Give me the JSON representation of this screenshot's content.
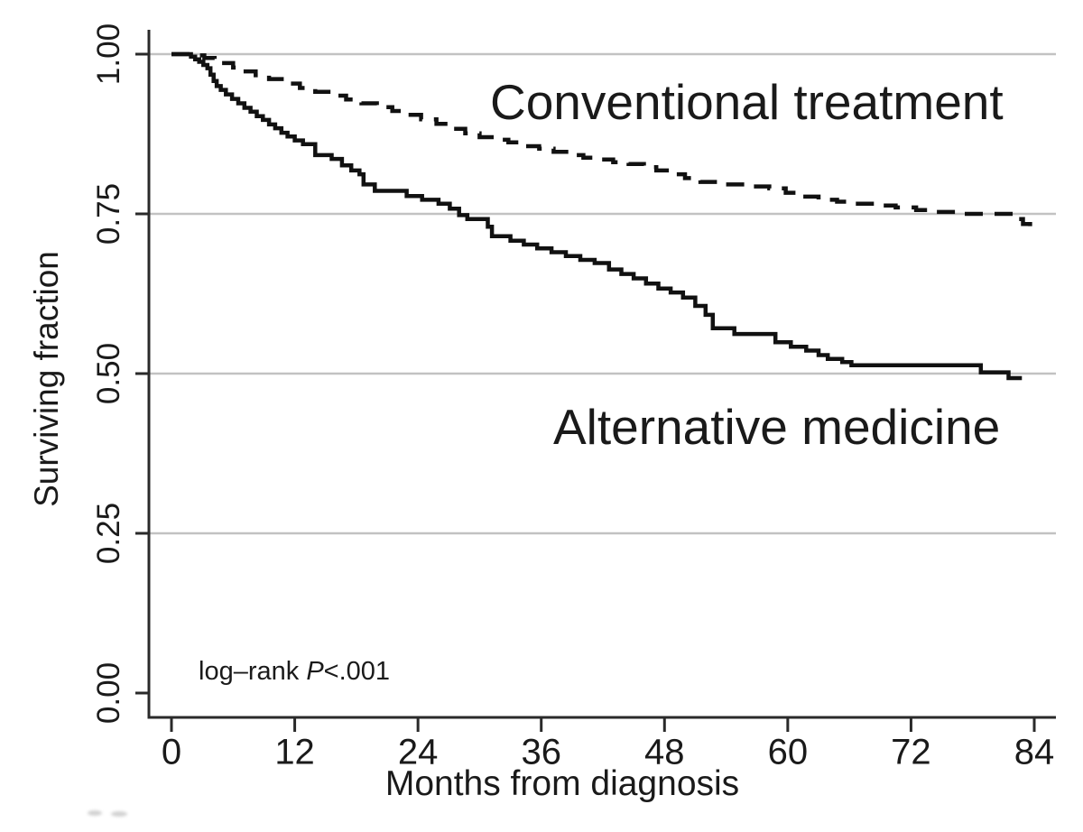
{
  "figure": {
    "background": "#ffffff",
    "text_color": "#1a1a1a",
    "curve_color": "#111111",
    "axis_color": "#2a2a2a",
    "gridline_color": "#c2c2c2",
    "annotations": {
      "conventional_label": "Conventional treatment",
      "alternative_label": "Alternative medicine",
      "logrank_prefix": "log–rank ",
      "logrank_stat": "P",
      "logrank_value": "<.001"
    }
  },
  "chart_data": {
    "type": "line",
    "subtype": "kaplan-meier-step",
    "title": "",
    "xlabel": "Months from diagnosis",
    "ylabel": "Surviving fraction",
    "xlim": [
      0,
      84
    ],
    "ylim": [
      0.0,
      1.0
    ],
    "x_ticks": [
      0,
      12,
      24,
      36,
      48,
      60,
      72,
      84
    ],
    "x_tick_labels": [
      "0",
      "12",
      "24",
      "36",
      "48",
      "60",
      "72",
      "84"
    ],
    "y_ticks": [
      0.0,
      0.25,
      0.5,
      0.75,
      1.0
    ],
    "y_tick_labels": [
      "0.00",
      "0.25",
      "0.50",
      "0.75",
      "1.00"
    ],
    "grid": "horizontal",
    "grid_y_values": [
      0.25,
      0.5,
      0.75,
      1.0
    ],
    "legend_position": "inline-labels",
    "annotation": "log–rank P<.001",
    "series": [
      {
        "name": "Conventional treatment",
        "style": "dashed",
        "color": "#111111",
        "end_month": 84.0,
        "points": [
          [
            0,
            1.0
          ],
          [
            2.2,
            0.998
          ],
          [
            3.2,
            0.994
          ],
          [
            4.2,
            0.99
          ],
          [
            4.8,
            0.986
          ],
          [
            6.0,
            0.979
          ],
          [
            7.0,
            0.973
          ],
          [
            8.2,
            0.967
          ],
          [
            9.5,
            0.961
          ],
          [
            11.0,
            0.954
          ],
          [
            12.5,
            0.947
          ],
          [
            14.0,
            0.941
          ],
          [
            15.5,
            0.935
          ],
          [
            17.0,
            0.929
          ],
          [
            18.5,
            0.923
          ],
          [
            20.0,
            0.917
          ],
          [
            21.5,
            0.911
          ],
          [
            23.0,
            0.905
          ],
          [
            24.3,
            0.898
          ],
          [
            25.8,
            0.891
          ],
          [
            27.2,
            0.883
          ],
          [
            28.6,
            0.876
          ],
          [
            30.0,
            0.87
          ],
          [
            31.4,
            0.866
          ],
          [
            32.8,
            0.862
          ],
          [
            34.3,
            0.856
          ],
          [
            35.8,
            0.852
          ],
          [
            37.2,
            0.847
          ],
          [
            38.7,
            0.842
          ],
          [
            40.1,
            0.838
          ],
          [
            41.6,
            0.835
          ],
          [
            43.0,
            0.831
          ],
          [
            44.5,
            0.828
          ],
          [
            46.0,
            0.823
          ],
          [
            47.2,
            0.818
          ],
          [
            48.5,
            0.812
          ],
          [
            50.0,
            0.806
          ],
          [
            51.5,
            0.8
          ],
          [
            54.0,
            0.796
          ],
          [
            56.0,
            0.793
          ],
          [
            58.2,
            0.79
          ],
          [
            59.8,
            0.783
          ],
          [
            61.2,
            0.777
          ],
          [
            63.0,
            0.772
          ],
          [
            64.8,
            0.769
          ],
          [
            66.5,
            0.766
          ],
          [
            68.5,
            0.763
          ],
          [
            70.5,
            0.76
          ],
          [
            72.5,
            0.756
          ],
          [
            74.5,
            0.753
          ],
          [
            76.5,
            0.75
          ],
          [
            81.7,
            0.742
          ],
          [
            82.9,
            0.734
          ],
          [
            83.6,
            0.729
          ]
        ]
      },
      {
        "name": "Alternative medicine",
        "style": "solid",
        "color": "#111111",
        "end_month": 82.8,
        "points": [
          [
            0,
            1.0
          ],
          [
            1.9,
            0.996
          ],
          [
            2.3,
            0.992
          ],
          [
            2.7,
            0.988
          ],
          [
            3.1,
            0.983
          ],
          [
            3.5,
            0.978
          ],
          [
            3.8,
            0.968
          ],
          [
            4.1,
            0.958
          ],
          [
            4.4,
            0.95
          ],
          [
            4.8,
            0.944
          ],
          [
            5.3,
            0.937
          ],
          [
            5.9,
            0.93
          ],
          [
            6.5,
            0.923
          ],
          [
            7.1,
            0.916
          ],
          [
            7.7,
            0.91
          ],
          [
            8.3,
            0.903
          ],
          [
            8.9,
            0.897
          ],
          [
            9.5,
            0.89
          ],
          [
            10.1,
            0.884
          ],
          [
            10.7,
            0.877
          ],
          [
            11.3,
            0.871
          ],
          [
            12.0,
            0.865
          ],
          [
            12.8,
            0.859
          ],
          [
            14.0,
            0.842
          ],
          [
            15.6,
            0.836
          ],
          [
            16.6,
            0.826
          ],
          [
            17.5,
            0.818
          ],
          [
            18.3,
            0.812
          ],
          [
            18.7,
            0.796
          ],
          [
            19.8,
            0.786
          ],
          [
            22.9,
            0.778
          ],
          [
            24.4,
            0.772
          ],
          [
            26.0,
            0.766
          ],
          [
            27.1,
            0.758
          ],
          [
            28.0,
            0.748
          ],
          [
            28.8,
            0.742
          ],
          [
            30.8,
            0.73
          ],
          [
            31.2,
            0.715
          ],
          [
            33.0,
            0.708
          ],
          [
            34.3,
            0.702
          ],
          [
            35.6,
            0.696
          ],
          [
            37.0,
            0.69
          ],
          [
            38.4,
            0.684
          ],
          [
            39.8,
            0.678
          ],
          [
            41.2,
            0.673
          ],
          [
            42.6,
            0.663
          ],
          [
            43.8,
            0.656
          ],
          [
            45.0,
            0.649
          ],
          [
            46.2,
            0.641
          ],
          [
            47.4,
            0.633
          ],
          [
            48.6,
            0.627
          ],
          [
            49.8,
            0.619
          ],
          [
            51.0,
            0.606
          ],
          [
            52.0,
            0.592
          ],
          [
            52.7,
            0.571
          ],
          [
            54.8,
            0.562
          ],
          [
            58.8,
            0.549
          ],
          [
            60.3,
            0.542
          ],
          [
            61.8,
            0.536
          ],
          [
            63.0,
            0.529
          ],
          [
            63.9,
            0.523
          ],
          [
            65.3,
            0.518
          ],
          [
            66.2,
            0.513
          ],
          [
            78.8,
            0.502
          ],
          [
            81.5,
            0.493
          ]
        ]
      }
    ]
  }
}
